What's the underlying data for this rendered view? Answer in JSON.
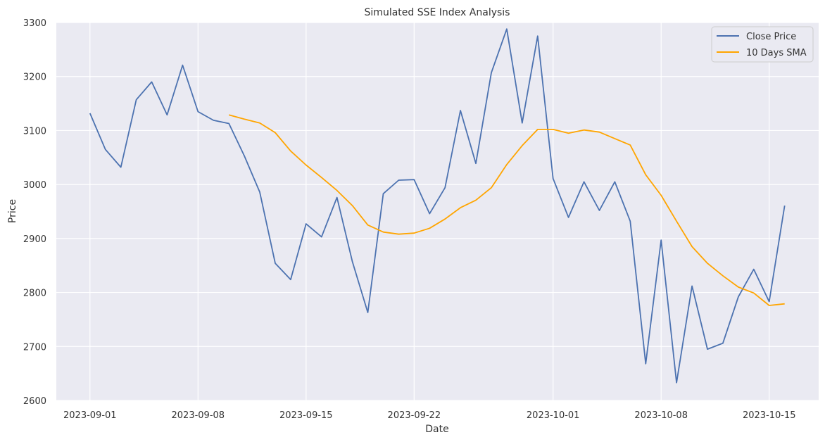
{
  "chart_data": {
    "type": "line",
    "title": "Simulated SSE Index Analysis",
    "xlabel": "Date",
    "ylabel": "Price",
    "ylim": [
      2600,
      3300
    ],
    "yticks": [
      2600,
      2700,
      2800,
      2900,
      3000,
      3100,
      3200,
      3300
    ],
    "xticks": [
      "2023-09-01",
      "2023-09-08",
      "2023-09-15",
      "2023-09-22",
      "2023-10-01",
      "2023-10-08",
      "2023-10-15"
    ],
    "grid": true,
    "legend_position": "top-right",
    "start_date": "2023-09-01",
    "series": [
      {
        "name": "Close Price",
        "color": "#4c72b0",
        "x": [
          "2023-09-01",
          "2023-09-02",
          "2023-09-03",
          "2023-09-04",
          "2023-09-05",
          "2023-09-06",
          "2023-09-07",
          "2023-09-08",
          "2023-09-09",
          "2023-09-10",
          "2023-09-11",
          "2023-09-12",
          "2023-09-13",
          "2023-09-14",
          "2023-09-15",
          "2023-09-16",
          "2023-09-17",
          "2023-09-18",
          "2023-09-19",
          "2023-09-20",
          "2023-09-21",
          "2023-09-22",
          "2023-09-23",
          "2023-09-24",
          "2023-09-25",
          "2023-09-26",
          "2023-09-27",
          "2023-09-28",
          "2023-09-29",
          "2023-09-30",
          "2023-10-01",
          "2023-10-02",
          "2023-10-03",
          "2023-10-04",
          "2023-10-05",
          "2023-10-06",
          "2023-10-07",
          "2023-10-08",
          "2023-10-09",
          "2023-10-10",
          "2023-10-11",
          "2023-10-12",
          "2023-10-13",
          "2023-10-14",
          "2023-10-15",
          "2023-10-16"
        ],
        "values": [
          3132,
          3065,
          3032,
          3157,
          3190,
          3129,
          3221,
          3135,
          3119,
          3113,
          3053,
          2986,
          2854,
          2824,
          2927,
          2903,
          2976,
          2857,
          2763,
          2983,
          3008,
          3009,
          2946,
          2994,
          3137,
          3039,
          3207,
          3288,
          3114,
          3275,
          3011,
          2939,
          3005,
          2952,
          3005,
          2932,
          2668,
          2897,
          2633,
          2812,
          2695,
          2706,
          2792,
          2843,
          2783,
          2961
        ]
      },
      {
        "name": "10 Days SMA",
        "color": "#ffa500",
        "x": [
          "2023-09-10",
          "2023-09-11",
          "2023-09-12",
          "2023-09-13",
          "2023-09-14",
          "2023-09-15",
          "2023-09-16",
          "2023-09-17",
          "2023-09-18",
          "2023-09-19",
          "2023-09-20",
          "2023-09-21",
          "2023-09-22",
          "2023-09-23",
          "2023-09-24",
          "2023-09-25",
          "2023-09-26",
          "2023-09-27",
          "2023-09-28",
          "2023-09-29",
          "2023-09-30",
          "2023-10-01",
          "2023-10-02",
          "2023-10-03",
          "2023-10-04",
          "2023-10-05",
          "2023-10-06",
          "2023-10-07",
          "2023-10-08",
          "2023-10-09",
          "2023-10-10",
          "2023-10-11",
          "2023-10-12",
          "2023-10-13",
          "2023-10-14",
          "2023-10-15",
          "2023-10-16"
        ],
        "values": [
          3129,
          3121,
          3114,
          3096,
          3062,
          3036,
          3013,
          2989,
          2961,
          2925,
          2912,
          2908,
          2910,
          2919,
          2936,
          2957,
          2971,
          2994,
          3037,
          3072,
          3102,
          3102,
          3095,
          3101,
          3097,
          3085,
          3073,
          3018,
          2980,
          2932,
          2885,
          2854,
          2831,
          2810,
          2799,
          2776,
          2779
        ]
      }
    ]
  }
}
